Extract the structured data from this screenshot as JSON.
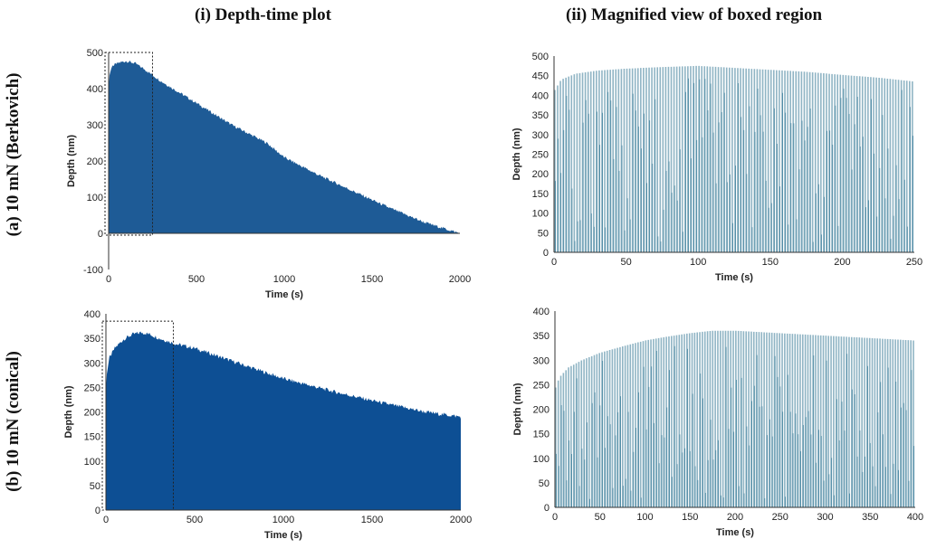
{
  "titles": {
    "col1": "(i) Depth-time plot",
    "col2": "(ii) Magnified view of boxed region",
    "row1": "(a) 10 mN (Berkovich)",
    "row2": "(b) 10 mN (conical)"
  },
  "colors": {
    "fill_dark": "#1e5b96",
    "fill_dark2": "#0d4f94",
    "bar_light": "#8fb4c4",
    "bar_teal": "#4d8aa4",
    "axis": "#333333"
  },
  "chart_data": [
    {
      "id": "a_full",
      "type": "area",
      "xlabel": "Time (s)",
      "ylabel": "Depth (nm)",
      "xlim": [
        0,
        2000
      ],
      "ylim": [
        -100,
        500
      ],
      "xticks": [
        0,
        500,
        1000,
        1500,
        2000
      ],
      "yticks": [
        -100,
        0,
        100,
        200,
        300,
        400,
        500
      ],
      "x": [
        0,
        5,
        15,
        30,
        60,
        100,
        150,
        200,
        300,
        500,
        700,
        800,
        900,
        1000,
        1200,
        1400,
        1600,
        1800,
        2000
      ],
      "y": [
        400,
        440,
        455,
        465,
        472,
        476,
        470,
        455,
        420,
        360,
        300,
        275,
        250,
        210,
        160,
        115,
        70,
        30,
        0
      ],
      "boxed_region": {
        "x": [
          0,
          250
        ],
        "y": [
          -5,
          500
        ]
      }
    },
    {
      "id": "a_zoom",
      "type": "bar",
      "xlabel": "Time (s)",
      "ylabel": "Depth (nm)",
      "xlim": [
        0,
        250
      ],
      "ylim": [
        0,
        500
      ],
      "xticks": [
        0,
        50,
        100,
        150,
        200,
        250
      ],
      "yticks": [
        0,
        50,
        100,
        150,
        200,
        250,
        300,
        350,
        400,
        450,
        500
      ],
      "x": [
        0,
        5,
        15,
        30,
        50,
        75,
        100,
        125,
        150,
        175,
        200,
        225,
        250
      ],
      "y": [
        410,
        440,
        455,
        463,
        468,
        472,
        475,
        470,
        465,
        460,
        452,
        445,
        435
      ],
      "bar_count": 130
    },
    {
      "id": "b_full",
      "type": "area",
      "xlabel": "Time (s)",
      "ylabel": "Depth (nm)",
      "xlim": [
        0,
        2000
      ],
      "ylim": [
        0,
        400
      ],
      "xticks": [
        0,
        500,
        1000,
        1500,
        2000
      ],
      "yticks": [
        0,
        50,
        100,
        150,
        200,
        250,
        300,
        350,
        400
      ],
      "x": [
        0,
        5,
        20,
        50,
        100,
        150,
        200,
        250,
        300,
        400,
        500,
        700,
        1000,
        1300,
        1600,
        1800,
        2000
      ],
      "y": [
        240,
        280,
        310,
        330,
        348,
        358,
        362,
        358,
        350,
        338,
        330,
        305,
        268,
        240,
        215,
        200,
        190
      ],
      "boxed_region": {
        "x": [
          0,
          380
        ],
        "y": [
          0,
          385
        ]
      }
    },
    {
      "id": "b_zoom",
      "type": "bar",
      "xlabel": "Time (s)",
      "ylabel": "Depth (nm)",
      "xlim": [
        0,
        400
      ],
      "ylim": [
        0,
        400
      ],
      "xticks": [
        0,
        50,
        100,
        150,
        200,
        250,
        300,
        350,
        400
      ],
      "yticks": [
        0,
        50,
        100,
        150,
        200,
        250,
        300,
        350,
        400
      ],
      "x": [
        0,
        5,
        15,
        30,
        50,
        75,
        100,
        125,
        150,
        175,
        200,
        250,
        300,
        350,
        400
      ],
      "y": [
        240,
        265,
        285,
        300,
        315,
        328,
        340,
        348,
        355,
        360,
        360,
        355,
        350,
        345,
        340
      ],
      "bar_count": 140
    }
  ]
}
